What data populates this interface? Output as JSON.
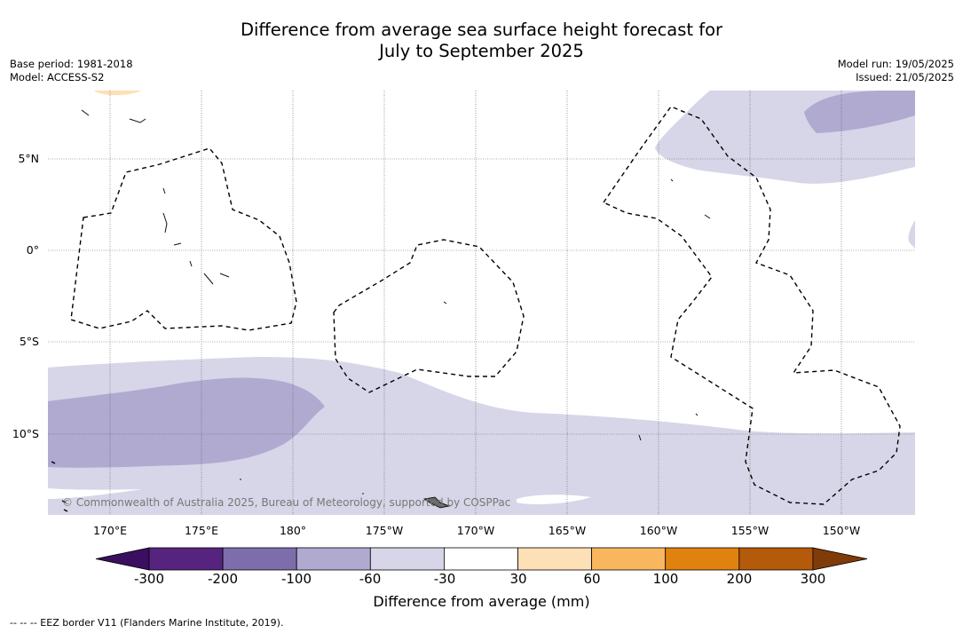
{
  "title": {
    "line1": "Difference from average sea surface height forecast for",
    "line2": "July to September 2025"
  },
  "meta": {
    "base_period": "Base period: 1981-2018",
    "model": "Model: ACCESS-S2",
    "model_run": "Model run: 19/05/2025",
    "issued": "Issued: 21/05/2025"
  },
  "map": {
    "lat_labels": [
      "5°N",
      "0°",
      "5°S",
      "10°S"
    ],
    "lon_labels": [
      "170°E",
      "175°E",
      "180°",
      "175°W",
      "170°W",
      "165°W",
      "160°W",
      "155°W",
      "150°W"
    ],
    "copyright": "© Commonwealth of Australia 2025, Bureau of Meteorology, supported by COSPPac"
  },
  "colorbar": {
    "title": "Difference from average (mm)",
    "tick_labels": [
      "-300",
      "-200",
      "-100",
      "-60",
      "-30",
      "30",
      "60",
      "100",
      "200",
      "300"
    ],
    "colors": [
      "#3b0f5f",
      "#56247f",
      "#7d6eab",
      "#b0aad1",
      "#d6d6e8",
      "#ffffff",
      "#fde0b5",
      "#f8b65f",
      "#e0820f",
      "#b35a0b",
      "#7f3b08"
    ]
  },
  "footnote": "--  --  -- EEZ border V11 (Flanders Marine Institute, 2019)."
}
